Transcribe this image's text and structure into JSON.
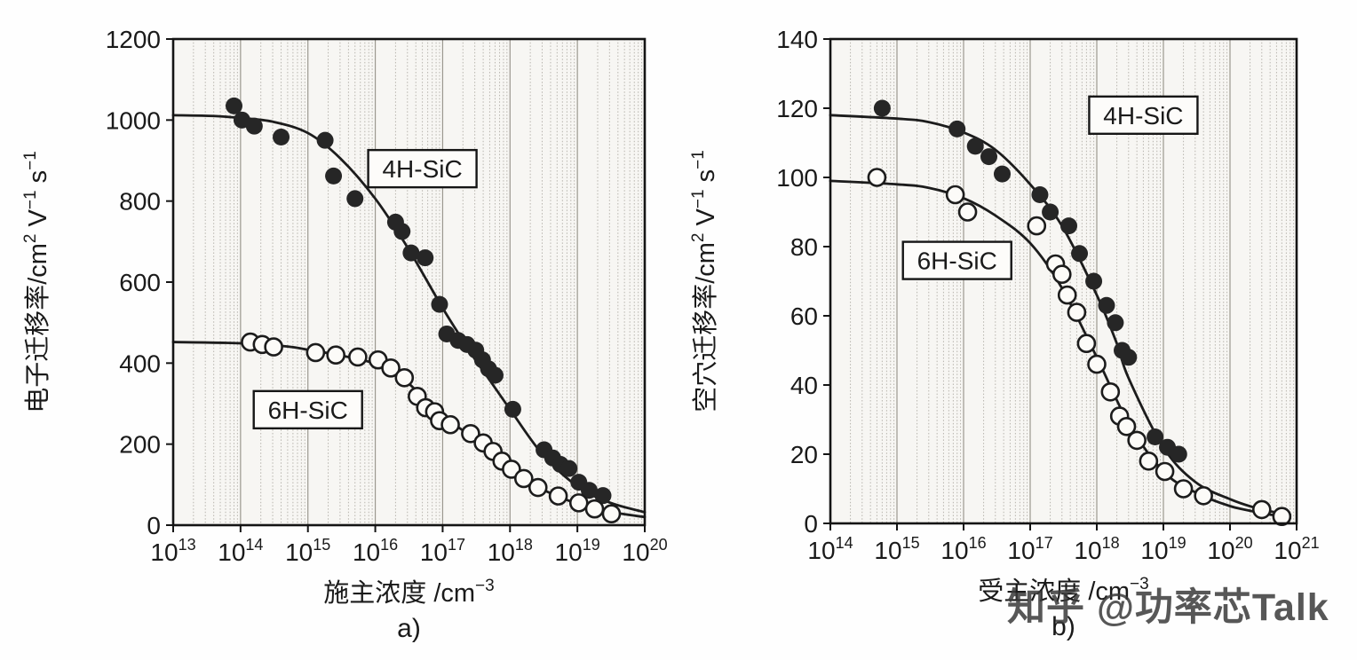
{
  "watermark": "知乎 @功率芯Talk",
  "chart_data": [
    {
      "id": "a",
      "type": "scatter",
      "caption": "a)",
      "xlabel": "施主浓度 /cm|−3|",
      "ylabel": "电子迁移率/cm|2| V|−1| s|−1|",
      "xscale": "log",
      "xlim": [
        10000000000000.0,
        1e+20
      ],
      "xticks_exp": [
        13,
        14,
        15,
        16,
        17,
        18,
        19,
        20
      ],
      "ylim": [
        0,
        1200
      ],
      "yticks": [
        0,
        200,
        400,
        600,
        800,
        1000,
        1200
      ],
      "grid": "vertical log minor gridlines, dotted",
      "legend": "boxed labels inside plot",
      "series": [
        {
          "name": "4H-SiC",
          "marker": "filled",
          "points": [
            [
              80000000000000.0,
              1035
            ],
            [
              105000000000000.0,
              1000
            ],
            [
              160000000000000.0,
              985
            ],
            [
              400000000000000.0,
              958
            ],
            [
              1800000000000000.0,
              950
            ],
            [
              2400000000000000.0,
              862
            ],
            [
              5000000000000000.0,
              806
            ],
            [
              2e+16,
              748
            ],
            [
              2.5e+16,
              725
            ],
            [
              3.4e+16,
              672
            ],
            [
              5.5e+16,
              660
            ],
            [
              9e+16,
              545
            ],
            [
              1.15e+17,
              472
            ],
            [
              1.7e+17,
              456
            ],
            [
              2.3e+17,
              446
            ],
            [
              3.1e+17,
              432
            ],
            [
              3.9e+17,
              408
            ],
            [
              4.8e+17,
              386
            ],
            [
              6e+17,
              370
            ],
            [
              1.1e+18,
              286
            ],
            [
              3.2e+18,
              186
            ],
            [
              4.3e+18,
              166
            ],
            [
              5.6e+18,
              150
            ],
            [
              7.5e+18,
              140
            ],
            [
              1.05e+19,
              106
            ],
            [
              1.5e+19,
              86
            ],
            [
              2.4e+19,
              73
            ]
          ],
          "curve": [
            [
              10000000000000.0,
              1012
            ],
            [
              40000000000000.0,
              1010
            ],
            [
              100000000000000.0,
              1005
            ],
            [
              300000000000000.0,
              996
            ],
            [
              1000000000000000.0,
              968
            ],
            [
              3000000000000000.0,
              906
            ],
            [
              1e+16,
              806
            ],
            [
              3e+16,
              686
            ],
            [
              1e+17,
              536
            ],
            [
              2e+17,
              456
            ],
            [
              3e+17,
              410
            ],
            [
              5e+17,
              358
            ],
            [
              1e+18,
              286
            ],
            [
              3e+18,
              176
            ],
            [
              1e+19,
              96
            ],
            [
              3e+19,
              56
            ],
            [
              1e+20,
              32
            ]
          ]
        },
        {
          "name": "6H-SiC",
          "marker": "open",
          "points": [
            [
              140000000000000.0,
              452
            ],
            [
              210000000000000.0,
              446
            ],
            [
              310000000000000.0,
              440
            ],
            [
              1300000000000000.0,
              426
            ],
            [
              2600000000000000.0,
              420
            ],
            [
              5500000000000000.0,
              415
            ],
            [
              1.1e+16,
              408
            ],
            [
              1.7e+16,
              388
            ],
            [
              2.7e+16,
              364
            ],
            [
              4.2e+16,
              318
            ],
            [
              5.6e+16,
              290
            ],
            [
              7.6e+16,
              280
            ],
            [
              9e+16,
              258
            ],
            [
              1.3e+17,
              248
            ],
            [
              2.6e+17,
              226
            ],
            [
              4e+17,
              203
            ],
            [
              5.6e+17,
              182
            ],
            [
              7.6e+17,
              158
            ],
            [
              1.05e+18,
              138
            ],
            [
              1.6e+18,
              115
            ],
            [
              2.6e+18,
              93
            ],
            [
              5.2e+18,
              72
            ],
            [
              1.05e+19,
              55
            ],
            [
              1.8e+19,
              40
            ],
            [
              3.2e+19,
              28
            ]
          ],
          "curve": [
            [
              10000000000000.0,
              452
            ],
            [
              100000000000000.0,
              449
            ],
            [
              500000000000000.0,
              441
            ],
            [
              1000000000000000.0,
              433
            ],
            [
              3000000000000000.0,
              419
            ],
            [
              1e+16,
              398
            ],
            [
              3e+16,
              352
            ],
            [
              6e+16,
              301
            ],
            [
              1e+17,
              268
            ],
            [
              3e+17,
              213
            ],
            [
              1e+18,
              141
            ],
            [
              3e+18,
              89
            ],
            [
              1e+19,
              53
            ],
            [
              3e+19,
              33
            ],
            [
              1e+20,
              20
            ]
          ]
        }
      ],
      "labels": [
        {
          "text": "4H-SiC",
          "x": 5e+16,
          "y": 880
        },
        {
          "text": "6H-SiC",
          "x": 1000000000000000.0,
          "y": 285
        }
      ]
    },
    {
      "id": "b",
      "type": "scatter",
      "caption": "b)",
      "xlabel": "受主浓度 /cm|−3|",
      "ylabel": "空穴迁移率/cm|2| V|−1| s|−1|",
      "xscale": "log",
      "xlim": [
        100000000000000.0,
        1e+21
      ],
      "xticks_exp": [
        14,
        15,
        16,
        17,
        18,
        19,
        20,
        21
      ],
      "ylim": [
        0,
        140
      ],
      "yticks": [
        0,
        20,
        40,
        60,
        80,
        100,
        120,
        140
      ],
      "grid": "vertical log minor gridlines, dotted",
      "legend": "boxed labels inside plot",
      "series": [
        {
          "name": "4H-SiC",
          "marker": "filled",
          "points": [
            [
              600000000000000.0,
              120
            ],
            [
              8000000000000000.0,
              114
            ],
            [
              1.5e+16,
              109
            ],
            [
              2.4e+16,
              106
            ],
            [
              3.8e+16,
              101
            ],
            [
              1.4e+17,
              95
            ],
            [
              2e+17,
              90
            ],
            [
              3.8e+17,
              86
            ],
            [
              5.5e+17,
              78
            ],
            [
              9e+17,
              70
            ],
            [
              1.4e+18,
              63
            ],
            [
              1.9e+18,
              58
            ],
            [
              2.4e+18,
              50
            ],
            [
              3e+18,
              48
            ],
            [
              7.5e+18,
              25
            ],
            [
              1.15e+19,
              22
            ],
            [
              1.7e+19,
              20
            ]
          ],
          "curve": [
            [
              100000000000000.0,
              118
            ],
            [
              1000000000000000.0,
              117
            ],
            [
              3000000000000000.0,
              116
            ],
            [
              1e+16,
              113
            ],
            [
              3e+16,
              108
            ],
            [
              1e+17,
              98
            ],
            [
              3e+17,
              86
            ],
            [
              1e+18,
              66
            ],
            [
              2e+18,
              52
            ],
            [
              3e+18,
              42
            ],
            [
              1e+19,
              22
            ],
            [
              3e+19,
              12
            ],
            [
              1e+20,
              7
            ],
            [
              3e+20,
              4
            ],
            [
              8e+20,
              2.5
            ]
          ]
        },
        {
          "name": "6H-SiC",
          "marker": "open",
          "points": [
            [
              500000000000000.0,
              100
            ],
            [
              7500000000000000.0,
              95
            ],
            [
              1.15e+16,
              90
            ],
            [
              1.25e+17,
              86
            ],
            [
              2.4e+17,
              75
            ],
            [
              3e+17,
              72
            ],
            [
              3.6e+17,
              66
            ],
            [
              5e+17,
              61
            ],
            [
              7e+17,
              52
            ],
            [
              1e+18,
              46
            ],
            [
              1.6e+18,
              38
            ],
            [
              2.2e+18,
              31
            ],
            [
              2.8e+18,
              28
            ],
            [
              4e+18,
              24
            ],
            [
              6e+18,
              18
            ],
            [
              1.05e+19,
              15
            ],
            [
              2e+19,
              10
            ],
            [
              4e+19,
              8
            ],
            [
              3e+20,
              4
            ],
            [
              6e+20,
              2
            ]
          ],
          "curve": [
            [
              100000000000000.0,
              99
            ],
            [
              1000000000000000.0,
              98
            ],
            [
              3000000000000000.0,
              97
            ],
            [
              1e+16,
              94
            ],
            [
              3e+16,
              89
            ],
            [
              1e+17,
              81
            ],
            [
              3e+17,
              68
            ],
            [
              1e+18,
              48
            ],
            [
              3e+18,
              29
            ],
            [
              1e+19,
              15
            ],
            [
              3e+19,
              9
            ],
            [
              1e+20,
              5
            ],
            [
              3e+20,
              3
            ],
            [
              8e+20,
              1.5
            ]
          ]
        }
      ],
      "labels": [
        {
          "text": "4H-SiC",
          "x": 5e+18,
          "y": 118
        },
        {
          "text": "6H-SiC",
          "x": 8000000000000000.0,
          "y": 76
        }
      ]
    }
  ]
}
